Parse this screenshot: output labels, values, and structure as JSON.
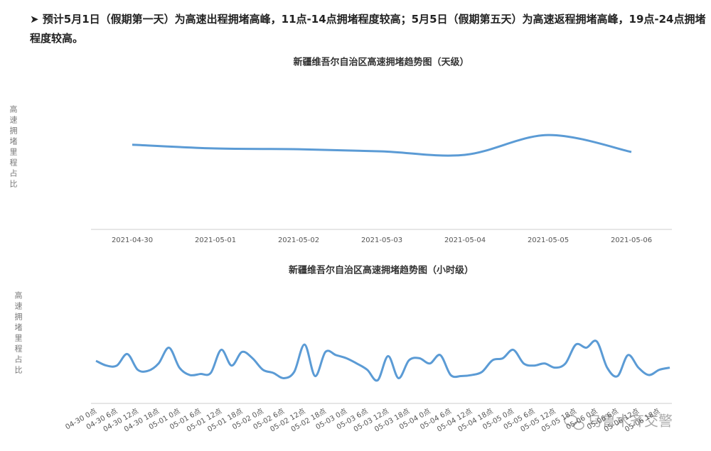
{
  "intro": "➤ 预计5月1日（假期第一天）为高速出程拥堵高峰，11点-14点拥堵程度较高；5月5日（假期第五天）为高速返程拥堵高峰，19点-24点拥堵程度较高。",
  "chart_data": [
    {
      "type": "line",
      "title": "新疆维吾尔自治区高速拥堵趋势图（天级）",
      "y_label": "高速拥堵里程占比",
      "categories": [
        "2021-04-30",
        "2021-05-01",
        "2021-05-02",
        "2021-05-03",
        "2021-05-04",
        "2021-05-05",
        "2021-05-06"
      ],
      "values": [
        56,
        53.5,
        53,
        51.6,
        49.3,
        62.4,
        51.2
      ],
      "color": "#5b9bd5",
      "ylim": [
        0,
        100
      ],
      "smooth": true
    },
    {
      "type": "line",
      "title": "新疆维吾尔自治区高速拥堵趋势图（小时级）",
      "y_label": "高速拥堵里程占比",
      "categories": [
        "04-30 0点",
        null,
        "04-30 6点",
        null,
        "04-30 12点",
        null,
        "04-30 18点",
        null,
        "05-01 0点",
        null,
        "05-01 6点",
        null,
        "05-01 12点",
        null,
        "05-01 18点",
        null,
        "05-02 0点",
        null,
        "05-02 6点",
        null,
        "05-02 12点",
        null,
        "05-02 18点",
        null,
        "05-03 0点",
        null,
        "05-03 6点",
        null,
        "05-03 12点",
        null,
        "05-03 18点",
        null,
        "05-04 0点",
        null,
        "05-04 6点",
        null,
        "05-04 12点",
        null,
        "05-04 18点",
        null,
        "05-05 0点",
        null,
        "05-05 6点",
        null,
        "05-05 12点",
        null,
        "05-05 18点",
        null,
        "05-06 0点",
        null,
        "05-06 6点",
        null,
        "05-06 12点",
        null,
        "05-06 18点",
        null
      ],
      "values": [
        40.5,
        36,
        36,
        47,
        32,
        31,
        38,
        53,
        34,
        27,
        28,
        29,
        51,
        36,
        49,
        43,
        32,
        29,
        24,
        30,
        56,
        26,
        49,
        46,
        43,
        38,
        32,
        22,
        45,
        24,
        41,
        43,
        38,
        46,
        27,
        26,
        27,
        30,
        41,
        43,
        51,
        38,
        36,
        38,
        34,
        38,
        56,
        53,
        59,
        34,
        26,
        46,
        34,
        27,
        32,
        34
      ],
      "color": "#5b9bd5",
      "ylim": [
        0,
        100
      ],
      "smooth": true
    }
  ],
  "watermark": "乌鲁木齐交警"
}
